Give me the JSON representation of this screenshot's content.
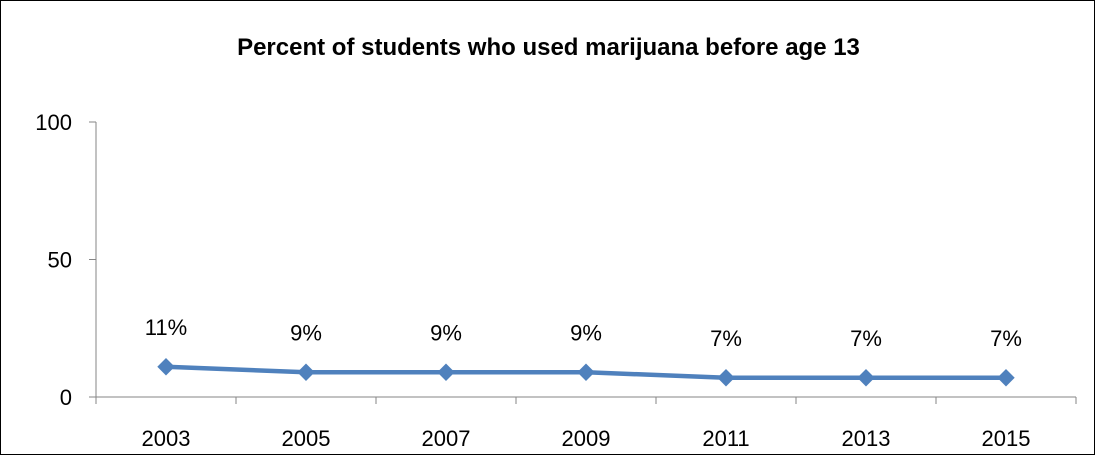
{
  "chart_data": {
    "type": "line",
    "title": "Percent of students who used marijuana before age 13",
    "categories": [
      "2003",
      "2005",
      "2007",
      "2009",
      "2011",
      "2013",
      "2015"
    ],
    "series": [
      {
        "values": [
          11,
          9,
          9,
          9,
          7,
          7,
          7
        ],
        "data_labels": [
          "11%",
          "9%",
          "9%",
          "9%",
          "7%",
          "7%",
          "7%"
        ],
        "color": "#4F81BD",
        "marker": "diamond"
      }
    ],
    "yticks": [
      "0",
      "50",
      "100"
    ],
    "ylim": [
      0,
      100
    ],
    "grid": false,
    "legend": "none"
  }
}
